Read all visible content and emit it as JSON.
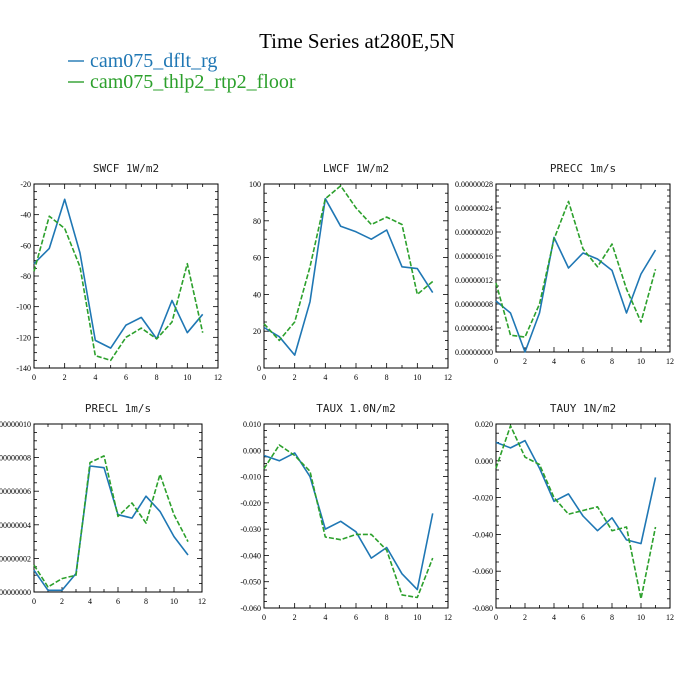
{
  "figure": {
    "title": "Time Series at280E,5N",
    "legend": [
      {
        "label": "cam075_dflt_rg",
        "color": "#1f77b4",
        "dash": "solid"
      },
      {
        "label": "cam075_thlp2_rtp2_floor",
        "color": "#2ca02c",
        "dash": "dashed"
      }
    ]
  },
  "chart_data": [
    {
      "type": "line",
      "title": "SWCF  1W/m2",
      "x": [
        0,
        1,
        2,
        3,
        4,
        5,
        6,
        7,
        8,
        9,
        10,
        11
      ],
      "xlim": [
        0,
        12
      ],
      "x_ticks": [
        "0",
        "2",
        "4",
        "6",
        "8",
        "10",
        "12"
      ],
      "ylim": [
        -140,
        -20
      ],
      "y_ticks": [
        "-140",
        "-120",
        "-100",
        "-80",
        "-60",
        "-40",
        "-20"
      ],
      "series": [
        {
          "name": "cam075_dflt_rg",
          "values": [
            -72,
            -62,
            -30,
            -65,
            -122,
            -127,
            -112,
            -107,
            -121,
            -96,
            -117,
            -105
          ]
        },
        {
          "name": "cam075_thlp2_rtp2_floor",
          "values": [
            -77,
            -41,
            -49,
            -74,
            -132,
            -135,
            -120,
            -114,
            -121,
            -110,
            -72,
            -117
          ]
        }
      ]
    },
    {
      "type": "line",
      "title": "LWCF  1W/m2",
      "x": [
        0,
        1,
        2,
        3,
        4,
        5,
        6,
        7,
        8,
        9,
        10,
        11
      ],
      "xlim": [
        0,
        12
      ],
      "x_ticks": [
        "0",
        "2",
        "4",
        "6",
        "8",
        "10",
        "12"
      ],
      "ylim": [
        0,
        100
      ],
      "y_ticks": [
        "0",
        "20",
        "40",
        "60",
        "80",
        "100"
      ],
      "series": [
        {
          "name": "cam075_dflt_rg",
          "values": [
            22,
            17,
            7,
            36,
            92,
            77,
            74,
            70,
            75,
            55,
            54,
            41
          ]
        },
        {
          "name": "cam075_thlp2_rtp2_floor",
          "values": [
            24,
            15,
            25,
            55,
            92,
            99,
            87,
            78,
            82,
            78,
            40,
            47
          ]
        }
      ]
    },
    {
      "type": "line",
      "title": "PRECC  1m/s",
      "x": [
        0,
        1,
        2,
        3,
        4,
        5,
        6,
        7,
        8,
        9,
        10,
        11
      ],
      "xlim": [
        0,
        12
      ],
      "x_ticks": [
        "0",
        "2",
        "4",
        "6",
        "8",
        "10",
        "12"
      ],
      "ylim": [
        0,
        2.8e-07
      ],
      "y_ticks": [
        "0.00000000",
        "0.00000004",
        "0.00000008",
        "0.00000012",
        "0.00000016",
        "0.00000020",
        "0.00000024",
        "0.00000028"
      ],
      "series": [
        {
          "name": "cam075_dflt_rg",
          "values": [
            8.5e-08,
            6.5e-08,
            0.0,
            6.5e-08,
            1.91e-07,
            1.4e-07,
            1.65e-07,
            1.55e-07,
            1.36e-07,
            6.5e-08,
            1.3e-07,
            1.7e-07
          ]
        },
        {
          "name": "cam075_thlp2_rtp2_floor",
          "values": [
            1.15e-07,
            2.8e-08,
            2.5e-08,
            8e-08,
            1.88e-07,
            2.51e-07,
            1.72e-07,
            1.42e-07,
            1.8e-07,
            1.05e-07,
            5e-08,
            1.38e-07
          ]
        }
      ]
    },
    {
      "type": "line",
      "title": "PRECL  1m/s",
      "x": [
        0,
        1,
        2,
        3,
        4,
        5,
        6,
        7,
        8,
        9,
        10,
        11
      ],
      "xlim": [
        0,
        12
      ],
      "x_ticks": [
        "0",
        "2",
        "4",
        "6",
        "8",
        "10",
        "12"
      ],
      "ylim": [
        0,
        1e-07
      ],
      "y_ticks": [
        "0.00000000",
        "0.00000002",
        "0.00000004",
        "0.00000006",
        "0.00000008",
        "0.00000010"
      ],
      "series": [
        {
          "name": "cam075_dflt_rg",
          "values": [
            1.3e-08,
            1e-09,
            1e-09,
            1.1e-08,
            7.5e-08,
            7.4e-08,
            4.6e-08,
            4.4e-08,
            5.7e-08,
            4.8e-08,
            3.3e-08,
            2.2e-08
          ]
        },
        {
          "name": "cam075_thlp2_rtp2_floor",
          "values": [
            1.6e-08,
            3e-09,
            8e-09,
            1e-08,
            7.7e-08,
            8.1e-08,
            4.5e-08,
            5.3e-08,
            4.1e-08,
            7e-08,
            4.6e-08,
            3e-08
          ]
        }
      ]
    },
    {
      "type": "line",
      "title": "TAUX  1.0N/m2",
      "x": [
        0,
        1,
        2,
        3,
        4,
        5,
        6,
        7,
        8,
        9,
        10,
        11
      ],
      "xlim": [
        0,
        12
      ],
      "x_ticks": [
        "0",
        "2",
        "4",
        "6",
        "8",
        "10",
        "12"
      ],
      "ylim": [
        -0.06,
        0.01
      ],
      "y_ticks": [
        "-0.060",
        "-0.050",
        "-0.040",
        "-0.030",
        "-0.020",
        "-0.010",
        "0.000",
        "0.010"
      ],
      "series": [
        {
          "name": "cam075_dflt_rg",
          "values": [
            -0.002,
            -0.004,
            -0.001,
            -0.01,
            -0.03,
            -0.027,
            -0.031,
            -0.041,
            -0.037,
            -0.047,
            -0.053,
            -0.024
          ]
        },
        {
          "name": "cam075_thlp2_rtp2_floor",
          "values": [
            -0.007,
            0.002,
            -0.002,
            -0.008,
            -0.033,
            -0.034,
            -0.032,
            -0.032,
            -0.038,
            -0.055,
            -0.056,
            -0.041
          ]
        }
      ]
    },
    {
      "type": "line",
      "title": "TAUY  1N/m2",
      "x": [
        0,
        1,
        2,
        3,
        4,
        5,
        6,
        7,
        8,
        9,
        10,
        11
      ],
      "xlim": [
        0,
        12
      ],
      "x_ticks": [
        "0",
        "2",
        "4",
        "6",
        "8",
        "10",
        "12"
      ],
      "ylim": [
        -0.08,
        0.02
      ],
      "y_ticks": [
        "-0.080",
        "-0.060",
        "-0.040",
        "-0.020",
        "0.000",
        "0.020"
      ],
      "series": [
        {
          "name": "cam075_dflt_rg",
          "values": [
            0.01,
            0.007,
            0.011,
            -0.004,
            -0.022,
            -0.018,
            -0.03,
            -0.038,
            -0.031,
            -0.043,
            -0.045,
            -0.009
          ]
        },
        {
          "name": "cam075_thlp2_rtp2_floor",
          "values": [
            -0.004,
            0.019,
            0.002,
            -0.002,
            -0.02,
            -0.029,
            -0.027,
            -0.025,
            -0.038,
            -0.036,
            -0.075,
            -0.036
          ]
        }
      ]
    }
  ]
}
